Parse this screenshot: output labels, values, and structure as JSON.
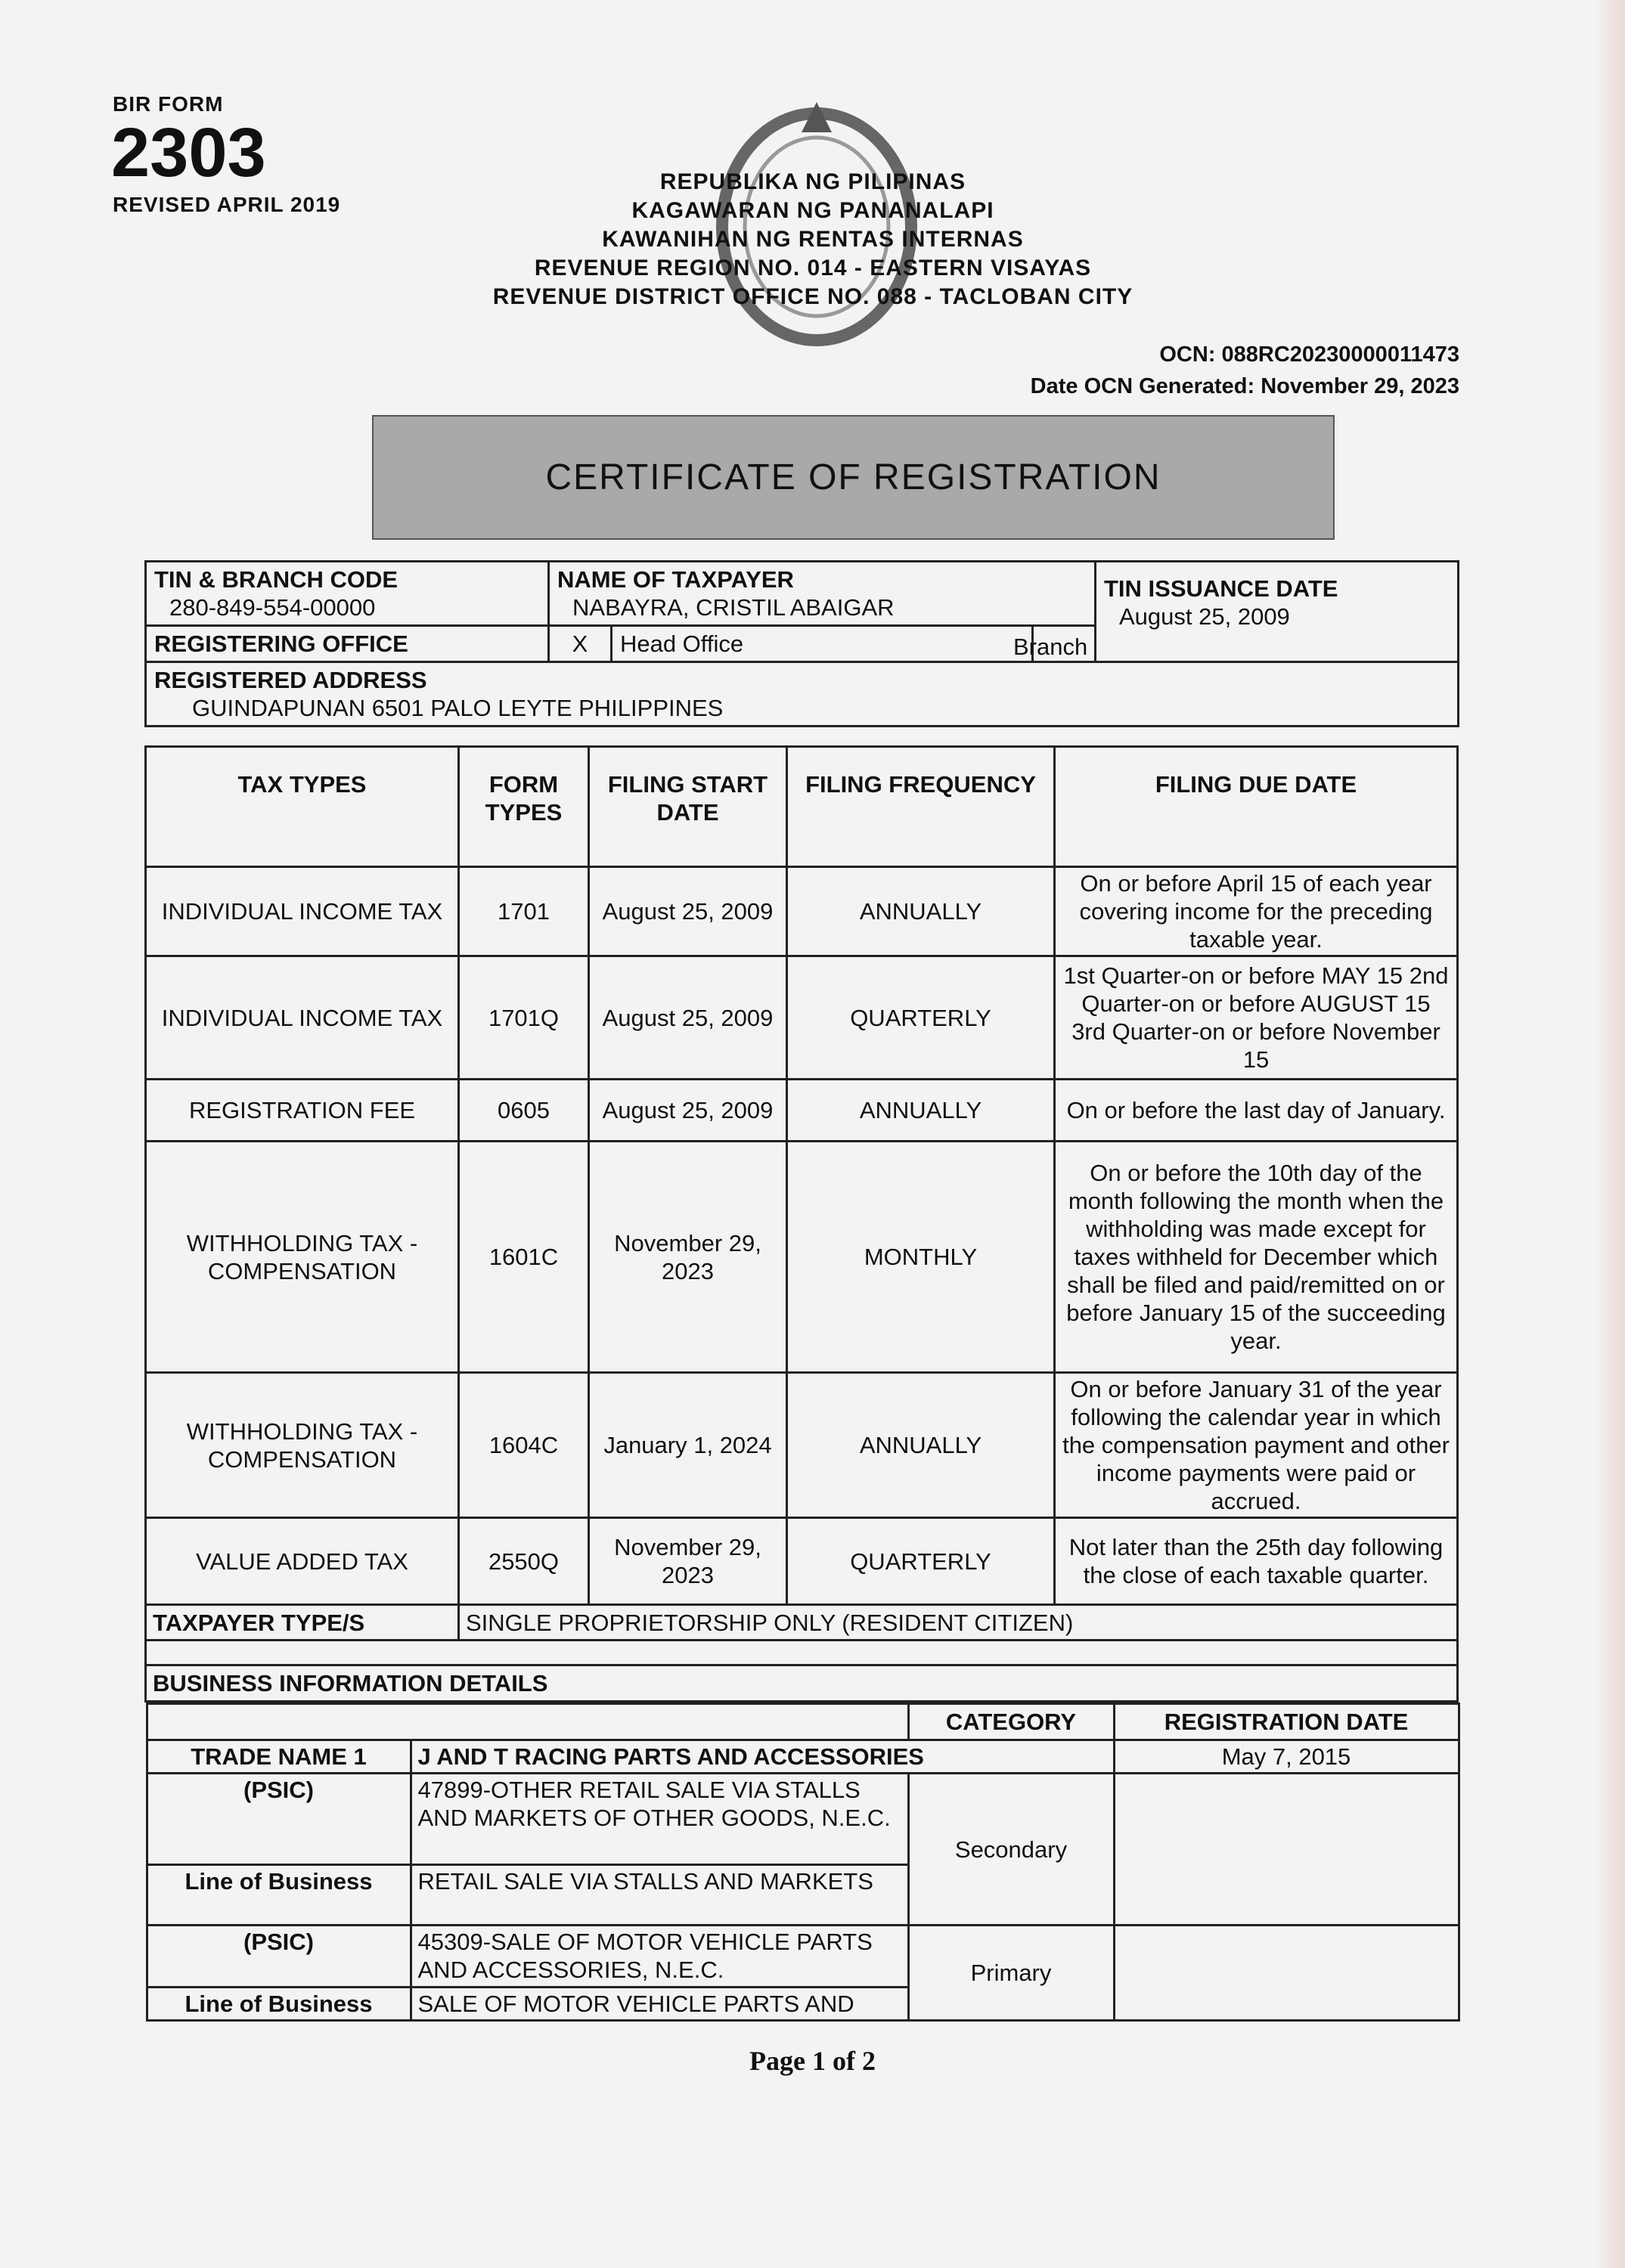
{
  "form": {
    "label": "BIR FORM",
    "number": "2303",
    "revised": "REVISED APRIL 2019"
  },
  "header": {
    "lines": [
      "REPUBLIKA NG PILIPINAS",
      "KAGAWARAN NG PANANALAPI",
      "KAWANIHAN NG RENTAS INTERNAS",
      "REVENUE REGION NO. 014 - EASTERN VISAYAS",
      "REVENUE DISTRICT OFFICE NO. 088 - TACLOBAN CITY"
    ]
  },
  "ocn": {
    "text": "OCN: 088RC20230000011473",
    "date": "Date OCN Generated: November 29, 2023"
  },
  "title": "CERTIFICATE OF REGISTRATION",
  "info": {
    "tin_label": "TIN & BRANCH CODE",
    "tin": "280-849-554-00000",
    "name_label": "NAME OF TAXPAYER",
    "name": "NABAYRA, CRISTIL ABAIGAR",
    "issuance_label": "TIN ISSUANCE DATE",
    "issuance": "August 25, 2009",
    "office_label": "REGISTERING OFFICE",
    "office_mark": "X",
    "head_office": "Head Office",
    "branch": "Branch",
    "address_label": "REGISTERED ADDRESS",
    "address": "GUINDAPUNAN 6501 PALO LEYTE PHILIPPINES"
  },
  "tax_table": {
    "headers": [
      "TAX TYPES",
      "FORM TYPES",
      "FILING START DATE",
      "FILING FREQUENCY",
      "FILING DUE DATE"
    ],
    "rows": [
      [
        "INDIVIDUAL INCOME TAX",
        "1701",
        "August 25, 2009",
        "ANNUALLY",
        "On or before April 15 of each year covering income for the preceding taxable year."
      ],
      [
        "INDIVIDUAL INCOME TAX",
        "1701Q",
        "August 25, 2009",
        "QUARTERLY",
        "1st Quarter-on or before MAY 15 2nd Quarter-on or before AUGUST 15 3rd Quarter-on or before November 15"
      ],
      [
        "REGISTRATION FEE",
        "0605",
        "August 25, 2009",
        "ANNUALLY",
        "On or before the last day of January."
      ],
      [
        "WITHHOLDING TAX - COMPENSATION",
        "1601C",
        "November 29, 2023",
        "MONTHLY",
        "On or before the 10th day of the month following the month when the withholding was made except for taxes withheld for December which shall be filed and paid/remitted on or before January 15 of the succeeding year."
      ],
      [
        "WITHHOLDING TAX - COMPENSATION",
        "1604C",
        "January 1, 2024",
        "ANNUALLY",
        "On or before January 31 of the year following the calendar year in which the compensation payment and other income payments were paid or accrued."
      ],
      [
        "VALUE ADDED TAX",
        "2550Q",
        "November 29, 2023",
        "QUARTERLY",
        "Not later than the 25th day following the close of each taxable quarter."
      ]
    ],
    "taxpayer_type_label": "TAXPAYER TYPE/S",
    "taxpayer_type": "SINGLE PROPRIETORSHIP ONLY (RESIDENT CITIZEN)"
  },
  "business": {
    "section_label": "BUSINESS INFORMATION DETAILS",
    "category_label": "CATEGORY",
    "registration_date_label": "REGISTRATION DATE",
    "trade_name_label": "TRADE NAME 1",
    "trade_name": "J AND T RACING PARTS AND ACCESSORIES",
    "registration_date": "May 7, 2015",
    "psic_label": "(PSIC)",
    "lob_label": "Line of Business",
    "lines": [
      {
        "psic": "47899-OTHER RETAIL SALE VIA STALLS AND MARKETS OF OTHER GOODS, N.E.C.",
        "lob": "RETAIL SALE VIA STALLS AND MARKETS",
        "category": "Secondary"
      },
      {
        "psic": "45309-SALE OF MOTOR VEHICLE PARTS AND ACCESSORIES, N.E.C.",
        "lob": "SALE OF MOTOR VEHICLE PARTS AND",
        "category": "Primary"
      }
    ]
  },
  "footer": {
    "page": "Page 1 of 2"
  }
}
